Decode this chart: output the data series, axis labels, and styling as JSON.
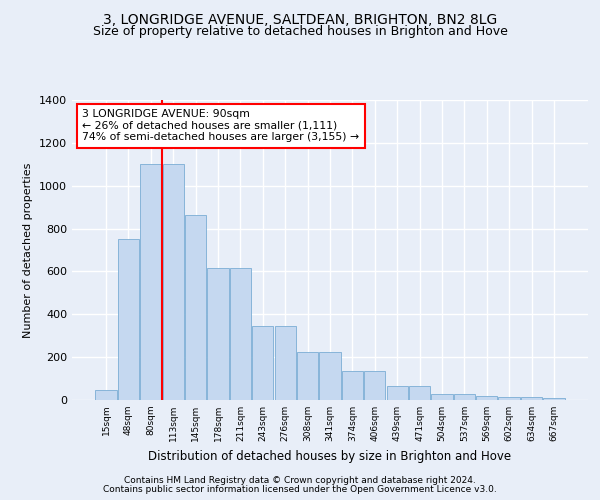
{
  "title1": "3, LONGRIDGE AVENUE, SALTDEAN, BRIGHTON, BN2 8LG",
  "title2": "Size of property relative to detached houses in Brighton and Hove",
  "xlabel": "Distribution of detached houses by size in Brighton and Hove",
  "ylabel": "Number of detached properties",
  "categories": [
    "15sqm",
    "48sqm",
    "80sqm",
    "113sqm",
    "145sqm",
    "178sqm",
    "211sqm",
    "243sqm",
    "276sqm",
    "308sqm",
    "341sqm",
    "374sqm",
    "406sqm",
    "439sqm",
    "471sqm",
    "504sqm",
    "537sqm",
    "569sqm",
    "602sqm",
    "634sqm",
    "667sqm"
  ],
  "values": [
    48,
    750,
    1100,
    1100,
    862,
    615,
    615,
    345,
    345,
    225,
    225,
    135,
    135,
    65,
    65,
    30,
    30,
    20,
    15,
    15,
    10
  ],
  "bar_color": "#c5d8f0",
  "bar_edge_color": "#7aadd4",
  "red_line_x": 2.5,
  "annotation_text": "3 LONGRIDGE AVENUE: 90sqm\n← 26% of detached houses are smaller (1,111)\n74% of semi-detached houses are larger (3,155) →",
  "ylim": [
    0,
    1400
  ],
  "yticks": [
    0,
    200,
    400,
    600,
    800,
    1000,
    1200,
    1400
  ],
  "footnote1": "Contains HM Land Registry data © Crown copyright and database right 2024.",
  "footnote2": "Contains public sector information licensed under the Open Government Licence v3.0.",
  "bg_color": "#e8eef8",
  "grid_color": "#d0d8e8",
  "title1_fontsize": 10,
  "title2_fontsize": 9
}
